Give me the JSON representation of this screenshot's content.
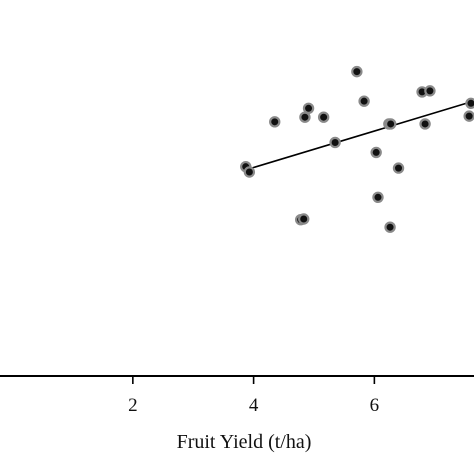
{
  "chart_data": {
    "type": "scatter",
    "title": "",
    "xlabel": "Fruit Yield  (t/ha)",
    "ylabel": "",
    "xlim": [
      -0.2,
      7.65
    ],
    "ylim": [
      0,
      1
    ],
    "xticks": [
      2,
      4,
      6
    ],
    "xtick_labels": [
      "2",
      "4",
      "6"
    ],
    "grid": false,
    "legend": "none",
    "series": [
      {
        "points": [
          {
            "x": 3.87,
            "y": 0.588
          },
          {
            "x": 3.93,
            "y": 0.573
          },
          {
            "x": 4.35,
            "y": 0.714
          },
          {
            "x": 4.78,
            "y": 0.439
          },
          {
            "x": 4.83,
            "y": 0.441
          },
          {
            "x": 4.85,
            "y": 0.727
          },
          {
            "x": 4.91,
            "y": 0.752
          },
          {
            "x": 5.16,
            "y": 0.727
          },
          {
            "x": 5.35,
            "y": 0.656
          },
          {
            "x": 5.71,
            "y": 0.855
          },
          {
            "x": 5.83,
            "y": 0.772
          },
          {
            "x": 6.03,
            "y": 0.628
          },
          {
            "x": 6.06,
            "y": 0.502
          },
          {
            "x": 6.24,
            "y": 0.708
          },
          {
            "x": 6.26,
            "y": 0.418
          },
          {
            "x": 6.27,
            "y": 0.708
          },
          {
            "x": 6.4,
            "y": 0.584
          },
          {
            "x": 6.79,
            "y": 0.798
          },
          {
            "x": 6.84,
            "y": 0.708
          },
          {
            "x": 6.92,
            "y": 0.801
          },
          {
            "x": 7.57,
            "y": 0.73
          },
          {
            "x": 7.6,
            "y": 0.766
          }
        ]
      }
    ],
    "trendline": {
      "x": [
        3.87,
        7.6
      ],
      "y": [
        0.579,
        0.77
      ]
    },
    "colors": {
      "point_fill": "#111111",
      "point_edge": "#8a8a8a",
      "line": "#000000",
      "axis": "#000000"
    }
  }
}
